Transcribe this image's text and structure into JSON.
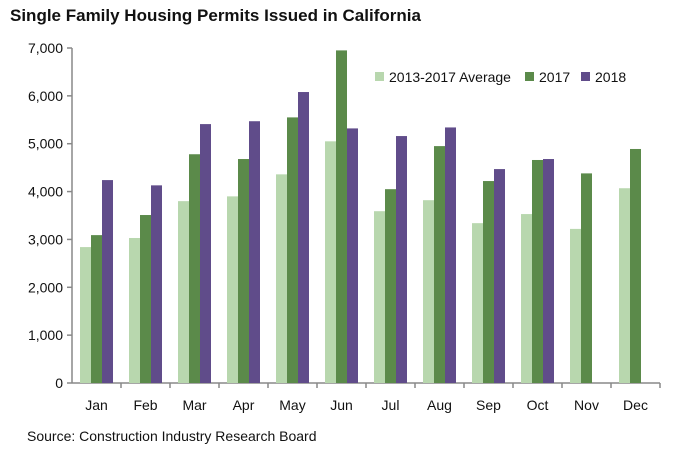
{
  "chart_data": {
    "type": "bar",
    "title": "Single Family Housing Permits Issued in California",
    "source": "Source: Construction Industry Research Board",
    "categories": [
      "Jan",
      "Feb",
      "Mar",
      "Apr",
      "May",
      "Jun",
      "Jul",
      "Aug",
      "Sep",
      "Oct",
      "Nov",
      "Dec"
    ],
    "series": [
      {
        "name": "2013-2017 Average",
        "color": "#b8d7ae",
        "values": [
          2840,
          3030,
          3800,
          3900,
          4360,
          5050,
          3590,
          3820,
          3340,
          3530,
          3220,
          4070
        ]
      },
      {
        "name": "2017",
        "color": "#5b8a4a",
        "values": [
          3090,
          3510,
          4780,
          4680,
          5550,
          6950,
          4050,
          4950,
          4220,
          4660,
          4380,
          4890
        ]
      },
      {
        "name": "2018",
        "color": "#604c8a",
        "values": [
          4240,
          4130,
          5410,
          5470,
          6080,
          5320,
          5160,
          5340,
          4470,
          4680,
          null,
          null
        ]
      }
    ],
    "ylim": [
      0,
      7000
    ],
    "yticks": [
      "0",
      "1,000",
      "2,000",
      "3,000",
      "4,000",
      "5,000",
      "6,000",
      "7,000"
    ],
    "grid": false,
    "legend": "top-right"
  }
}
